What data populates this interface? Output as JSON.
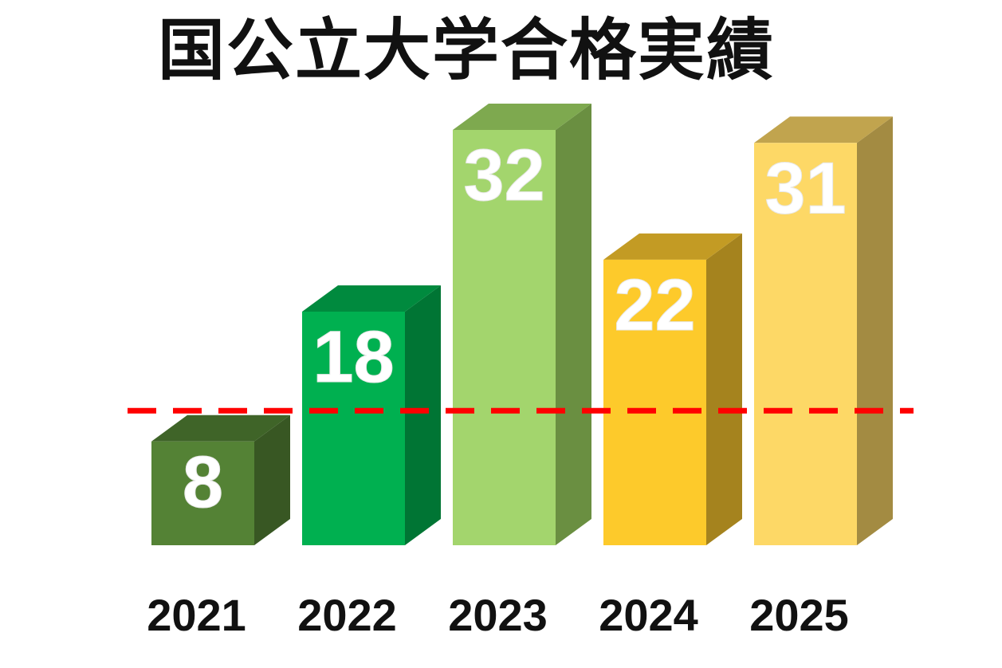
{
  "chart_data": {
    "type": "bar",
    "title": "国公立大学合格実績",
    "categories": [
      "2021",
      "2022",
      "2023",
      "2024",
      "2025"
    ],
    "values": [
      8,
      18,
      32,
      22,
      31
    ],
    "bar_colors": [
      {
        "front": "#548235",
        "side": "#385723",
        "top": "#3f6428"
      },
      {
        "front": "#00b050",
        "side": "#007534",
        "top": "#008a3e"
      },
      {
        "front": "#a3d56d",
        "side": "#6a8f41",
        "top": "#7ea94f"
      },
      {
        "front": "#fdca2b",
        "side": "#a5831e",
        "top": "#c39b24"
      },
      {
        "front": "#fdd866",
        "side": "#a38b42",
        "top": "#c1a44e"
      }
    ],
    "reference_line": {
      "value": 10,
      "style": "dashed",
      "color": "#ff0000"
    },
    "ylim": [
      0,
      32
    ],
    "grid": false,
    "legend": "none",
    "xlabel": "",
    "ylabel": ""
  }
}
